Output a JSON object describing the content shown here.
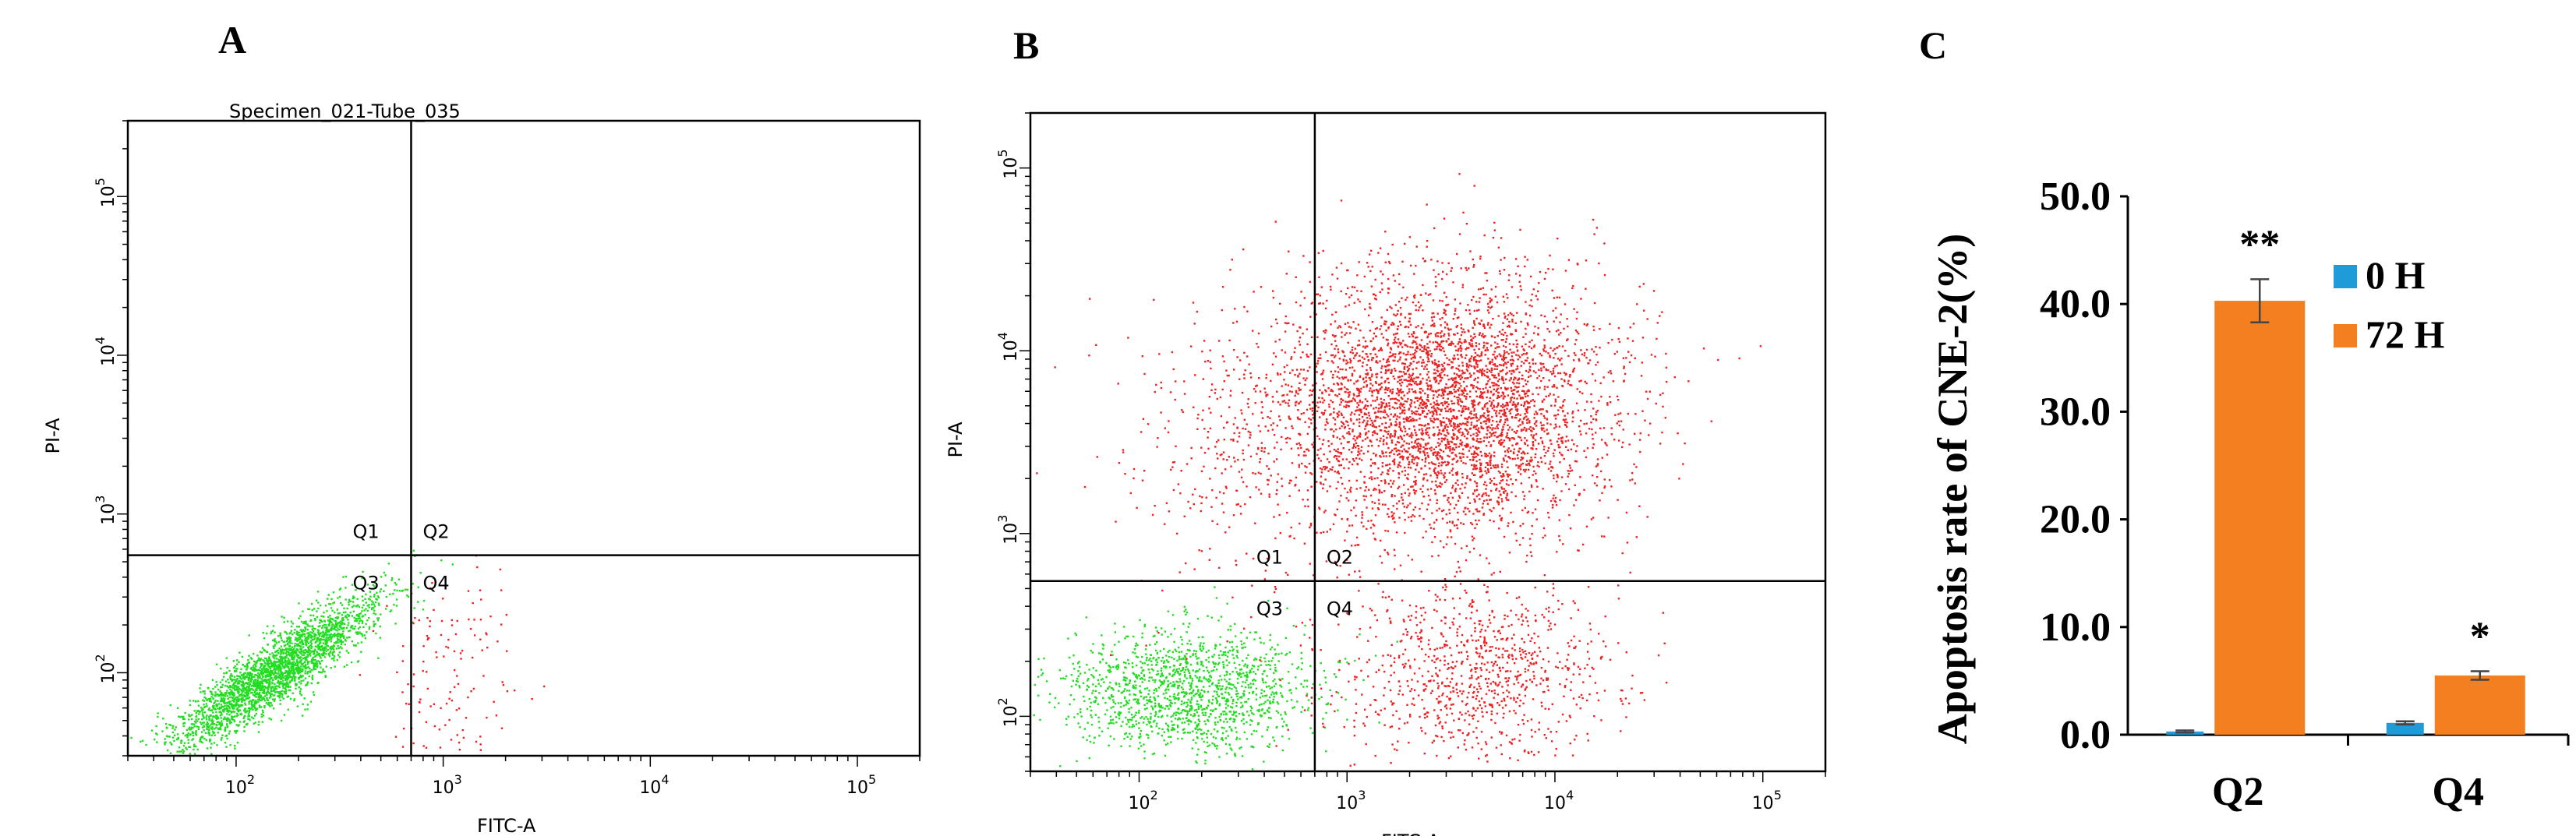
{
  "figure": {
    "panels": [
      {
        "letter": "A",
        "header_text": "Specimen_021-Tube_035",
        "x_axis_label": "FITC-A",
        "y_axis_label": "PI-A",
        "quadrants": [
          "Q1",
          "Q2",
          "Q3",
          "Q4"
        ],
        "x_ticks": [
          {
            "base": "10",
            "exp": "2"
          },
          {
            "base": "10",
            "exp": "3"
          },
          {
            "base": "10",
            "exp": "4"
          },
          {
            "base": "10",
            "exp": "5"
          }
        ],
        "y_ticks": [
          {
            "base": "10",
            "exp": "2"
          },
          {
            "base": "10",
            "exp": "3"
          },
          {
            "base": "10",
            "exp": "4"
          },
          {
            "base": "10",
            "exp": "5"
          }
        ]
      },
      {
        "letter": "B",
        "header_text": "",
        "x_axis_label": "FITC-A",
        "y_axis_label": "PI-A",
        "quadrants": [
          "Q1",
          "Q2",
          "Q3",
          "Q4"
        ],
        "x_ticks": [
          {
            "base": "10",
            "exp": "2"
          },
          {
            "base": "10",
            "exp": "3"
          },
          {
            "base": "10",
            "exp": "4"
          },
          {
            "base": "10",
            "exp": "5"
          }
        ],
        "y_ticks": [
          {
            "base": "10",
            "exp": "2"
          },
          {
            "base": "10",
            "exp": "3"
          },
          {
            "base": "10",
            "exp": "4"
          },
          {
            "base": "10",
            "exp": "5"
          }
        ]
      },
      {
        "letter": "C"
      }
    ]
  },
  "colors": {
    "live_cells": "#22dd22",
    "apoptotic_cells": "#ee2222",
    "series_0h": "#1f9bd8",
    "series_72h": "#f47f20"
  },
  "chart_data": [
    {
      "type": "scatter",
      "panel": "A",
      "x_scale": "log",
      "y_scale": "log",
      "xlim": [
        30,
        200000
      ],
      "ylim": [
        30,
        300000
      ],
      "gates": {
        "x": 700,
        "y": 550
      },
      "populations": [
        {
          "color_key": "live_cells",
          "center": [
            150,
            100
          ],
          "spread_log10": [
            0.25,
            0.2
          ],
          "count": 2600,
          "trend": "diagonal"
        },
        {
          "color_key": "apoptotic_cells",
          "center": [
            1100,
            90
          ],
          "spread_log10": [
            0.15,
            0.35
          ],
          "count": 140,
          "trend": "none"
        }
      ]
    },
    {
      "type": "scatter",
      "panel": "B",
      "x_scale": "log",
      "y_scale": "log",
      "xlim": [
        30,
        200000
      ],
      "ylim": [
        50,
        200000
      ],
      "gates": {
        "x": 700,
        "y": 550
      },
      "populations": [
        {
          "color_key": "live_cells",
          "center": [
            170,
            140
          ],
          "spread_log10": [
            0.3,
            0.17
          ],
          "count": 1500,
          "trend": "none"
        },
        {
          "color_key": "apoptotic_cells",
          "center": [
            3000,
            5000
          ],
          "spread_log10": [
            0.4,
            0.35
          ],
          "count": 4200,
          "trend": "none"
        },
        {
          "color_key": "apoptotic_cells",
          "center": [
            4000,
            170
          ],
          "spread_log10": [
            0.32,
            0.25
          ],
          "count": 950,
          "trend": "none"
        },
        {
          "color_key": "apoptotic_cells",
          "center": [
            300,
            3000
          ],
          "spread_log10": [
            0.3,
            0.4
          ],
          "count": 350,
          "trend": "none"
        }
      ]
    },
    {
      "type": "bar",
      "panel": "C",
      "categories": [
        "Q2",
        "Q4"
      ],
      "series": [
        {
          "name": "0 H",
          "color_key": "series_0h",
          "values": [
            0.3,
            1.1
          ],
          "errors": [
            0.1,
            0.15
          ]
        },
        {
          "name": "72 H",
          "color_key": "series_72h",
          "values": [
            40.3,
            5.5
          ],
          "errors": [
            2.0,
            0.4
          ]
        }
      ],
      "ylabel": "Apoptosis rate of CNE-2(%)",
      "ylim": [
        0,
        50
      ],
      "yticks": [
        "0.0",
        "10.0",
        "20.0",
        "30.0",
        "40.0",
        "50.0"
      ],
      "significance": [
        "**",
        "*"
      ],
      "legend": "right"
    }
  ]
}
